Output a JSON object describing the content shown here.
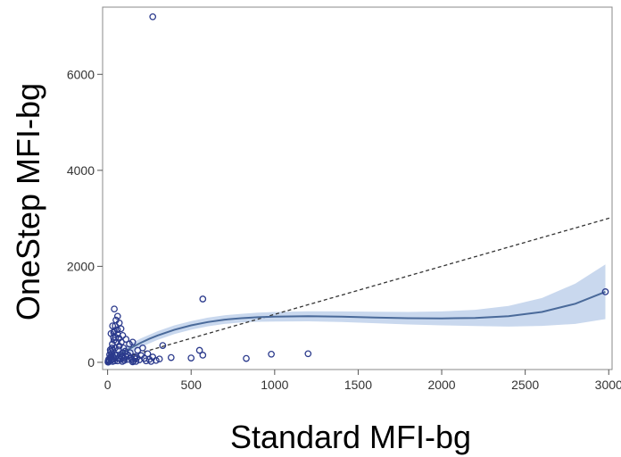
{
  "chart_data": {
    "type": "scatter",
    "xlabel": "Standard MFI-bg",
    "ylabel": "OneStep MFI-bg",
    "xlim": [
      -30,
      3020
    ],
    "ylim": [
      -150,
      7400
    ],
    "x_ticks": [
      0,
      500,
      1000,
      1500,
      2000,
      2500,
      3000
    ],
    "y_ticks": [
      0,
      2000,
      4000,
      6000
    ],
    "x_tick_labels": [
      "0",
      "500",
      "1000",
      "1500",
      "2000",
      "2500",
      "3000"
    ],
    "y_tick_labels": [
      "0",
      "2000",
      "4000",
      "6000"
    ],
    "grid": false,
    "legend": "none",
    "colors": {
      "points": "#2b3a8c",
      "smooth_line": "#4a6a9a",
      "confidence_band": "#c9d8ee",
      "reference_line": "#333333",
      "frame": "#888888"
    },
    "points": [
      [
        270,
        7200
      ],
      [
        570,
        1320
      ],
      [
        2980,
        1470
      ],
      [
        40,
        1110
      ],
      [
        60,
        960
      ],
      [
        50,
        880
      ],
      [
        70,
        820
      ],
      [
        30,
        760
      ],
      [
        80,
        700
      ],
      [
        40,
        650
      ],
      [
        20,
        600
      ],
      [
        60,
        580
      ],
      [
        90,
        560
      ],
      [
        35,
        520
      ],
      [
        110,
        480
      ],
      [
        150,
        420
      ],
      [
        130,
        380
      ],
      [
        330,
        350
      ],
      [
        550,
        250
      ],
      [
        1200,
        180
      ],
      [
        980,
        170
      ],
      [
        570,
        150
      ],
      [
        270,
        110
      ],
      [
        380,
        100
      ],
      [
        500,
        90
      ],
      [
        830,
        80
      ],
      [
        210,
        300
      ],
      [
        180,
        250
      ],
      [
        240,
        180
      ],
      [
        160,
        120
      ],
      [
        140,
        90
      ],
      [
        120,
        60
      ],
      [
        100,
        40
      ],
      [
        90,
        200
      ],
      [
        70,
        340
      ],
      [
        55,
        420
      ],
      [
        45,
        300
      ],
      [
        30,
        250
      ],
      [
        25,
        180
      ],
      [
        20,
        120
      ],
      [
        15,
        80
      ],
      [
        10,
        40
      ],
      [
        8,
        20
      ],
      [
        5,
        10
      ],
      [
        12,
        160
      ],
      [
        18,
        220
      ],
      [
        28,
        380
      ],
      [
        38,
        460
      ],
      [
        48,
        520
      ],
      [
        65,
        260
      ],
      [
        75,
        150
      ],
      [
        85,
        110
      ],
      [
        95,
        300
      ],
      [
        105,
        230
      ],
      [
        115,
        170
      ],
      [
        125,
        140
      ],
      [
        135,
        200
      ],
      [
        145,
        60
      ],
      [
        155,
        30
      ],
      [
        165,
        70
      ],
      [
        175,
        100
      ],
      [
        190,
        50
      ],
      [
        200,
        140
      ],
      [
        220,
        80
      ],
      [
        230,
        30
      ],
      [
        250,
        60
      ],
      [
        60,
        30
      ],
      [
        40,
        70
      ],
      [
        30,
        20
      ],
      [
        22,
        50
      ],
      [
        14,
        100
      ],
      [
        6,
        60
      ],
      [
        3,
        30
      ],
      [
        2,
        5
      ],
      [
        52,
        140
      ],
      [
        66,
        90
      ],
      [
        78,
        60
      ],
      [
        88,
        20
      ],
      [
        98,
        80
      ],
      [
        108,
        120
      ],
      [
        42,
        30
      ],
      [
        34,
        110
      ],
      [
        26,
        300
      ],
      [
        16,
        260
      ],
      [
        58,
        680
      ],
      [
        46,
        760
      ],
      [
        36,
        620
      ],
      [
        68,
        500
      ],
      [
        82,
        420
      ],
      [
        150,
        10
      ],
      [
        170,
        20
      ],
      [
        260,
        20
      ],
      [
        290,
        40
      ],
      [
        310,
        70
      ]
    ],
    "smooth_curve": [
      [
        0,
        0
      ],
      [
        50,
        110
      ],
      [
        100,
        220
      ],
      [
        150,
        320
      ],
      [
        200,
        410
      ],
      [
        250,
        490
      ],
      [
        300,
        560
      ],
      [
        400,
        680
      ],
      [
        500,
        770
      ],
      [
        600,
        840
      ],
      [
        700,
        890
      ],
      [
        800,
        920
      ],
      [
        900,
        940
      ],
      [
        1000,
        950
      ],
      [
        1200,
        960
      ],
      [
        1400,
        950
      ],
      [
        1600,
        935
      ],
      [
        1800,
        920
      ],
      [
        2000,
        915
      ],
      [
        2200,
        925
      ],
      [
        2400,
        960
      ],
      [
        2600,
        1050
      ],
      [
        2800,
        1220
      ],
      [
        2980,
        1470
      ]
    ],
    "confidence_band": [
      [
        0,
        -90,
        90
      ],
      [
        100,
        120,
        320
      ],
      [
        200,
        320,
        500
      ],
      [
        300,
        470,
        650
      ],
      [
        400,
        590,
        770
      ],
      [
        500,
        680,
        860
      ],
      [
        600,
        750,
        930
      ],
      [
        700,
        800,
        980
      ],
      [
        800,
        830,
        1010
      ],
      [
        900,
        845,
        1035
      ],
      [
        1000,
        850,
        1050
      ],
      [
        1200,
        855,
        1065
      ],
      [
        1400,
        840,
        1060
      ],
      [
        1600,
        815,
        1055
      ],
      [
        1800,
        790,
        1050
      ],
      [
        2000,
        770,
        1060
      ],
      [
        2200,
        755,
        1095
      ],
      [
        2400,
        745,
        1175
      ],
      [
        2600,
        760,
        1340
      ],
      [
        2800,
        800,
        1640
      ],
      [
        2980,
        900,
        2040
      ]
    ],
    "reference_line": [
      [
        0,
        0
      ],
      [
        3020,
        3020
      ]
    ]
  }
}
